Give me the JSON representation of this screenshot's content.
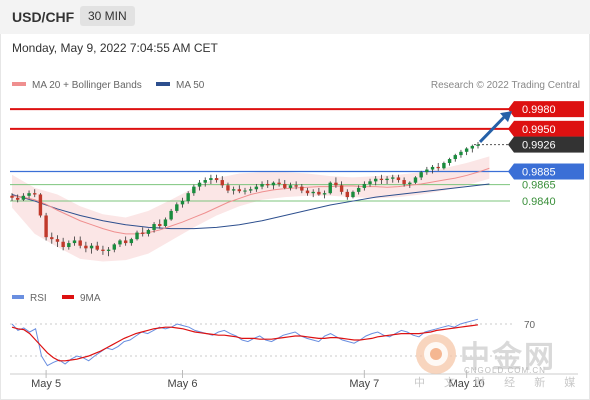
{
  "header": {
    "pair": "USD/CHF",
    "timeframe": "30 MIN"
  },
  "datetime": "Monday, May 9, 2022 7:04:55 AM CET",
  "legend": [
    {
      "label": "MA 20 + Bollinger Bands",
      "color": "#ef8f8f"
    },
    {
      "label": "MA 50",
      "color": "#2d4f8e"
    }
  ],
  "credit": "Research © 2022 Trading Central",
  "rsi_legend": [
    {
      "label": "RSI",
      "color": "#6a8fe0"
    },
    {
      "label": "9MA",
      "color": "#dd1111"
    }
  ],
  "watermark": {
    "cn": "中金网",
    "en": "CNGOLD.COM.CN",
    "sub": "中 文 财 经 新 媒 体"
  },
  "colors": {
    "resistance": "#dd1111",
    "pivot": "#3b6fd6",
    "support": "#7dc47d",
    "current": "#333333",
    "bb_fill": "#fbe3e3"
  },
  "chart_data": [
    {
      "type": "candlestick",
      "title": "USD/CHF",
      "x_ticks": [
        "May 5",
        "May 6",
        "May 7",
        "May 10"
      ],
      "ylim": [
        0.9735,
        1.0
      ],
      "candles": [
        [
          0.9848,
          0.9852,
          0.984,
          0.9845
        ],
        [
          0.9845,
          0.985,
          0.9838,
          0.9842
        ],
        [
          0.9842,
          0.9852,
          0.984,
          0.9848
        ],
        [
          0.9848,
          0.9856,
          0.9844,
          0.9852
        ],
        [
          0.9852,
          0.9858,
          0.9846,
          0.985
        ],
        [
          0.985,
          0.9852,
          0.9815,
          0.9818
        ],
        [
          0.9818,
          0.9822,
          0.978,
          0.9785
        ],
        [
          0.9785,
          0.9792,
          0.9775,
          0.9782
        ],
        [
          0.9782,
          0.9788,
          0.977,
          0.9778
        ],
        [
          0.9778,
          0.9784,
          0.9765,
          0.977
        ],
        [
          0.977,
          0.978,
          0.9766,
          0.9776
        ],
        [
          0.9776,
          0.9786,
          0.9772,
          0.978
        ],
        [
          0.978,
          0.9786,
          0.9768,
          0.9772
        ],
        [
          0.9772,
          0.9778,
          0.9762,
          0.9768
        ],
        [
          0.9768,
          0.9776,
          0.976,
          0.9772
        ],
        [
          0.9772,
          0.9778,
          0.9764,
          0.9766
        ],
        [
          0.9766,
          0.9772,
          0.9758,
          0.9764
        ],
        [
          0.9764,
          0.977,
          0.9756,
          0.9766
        ],
        [
          0.9766,
          0.9776,
          0.9762,
          0.9774
        ],
        [
          0.9774,
          0.9782,
          0.977,
          0.978
        ],
        [
          0.978,
          0.9786,
          0.9772,
          0.9776
        ],
        [
          0.9776,
          0.9784,
          0.9772,
          0.9782
        ],
        [
          0.9782,
          0.9795,
          0.978,
          0.9792
        ],
        [
          0.9792,
          0.98,
          0.9786,
          0.979
        ],
        [
          0.979,
          0.9798,
          0.9786,
          0.9796
        ],
        [
          0.9796,
          0.9808,
          0.9792,
          0.9805
        ],
        [
          0.9805,
          0.9812,
          0.9798,
          0.9802
        ],
        [
          0.9802,
          0.9815,
          0.98,
          0.9812
        ],
        [
          0.9812,
          0.9828,
          0.981,
          0.9825
        ],
        [
          0.9825,
          0.9838,
          0.9822,
          0.9835
        ],
        [
          0.9835,
          0.9845,
          0.983,
          0.984
        ],
        [
          0.984,
          0.9855,
          0.9836,
          0.9852
        ],
        [
          0.9852,
          0.9865,
          0.9848,
          0.9862
        ],
        [
          0.9862,
          0.9872,
          0.9856,
          0.9868
        ],
        [
          0.9868,
          0.9876,
          0.9862,
          0.9872
        ],
        [
          0.9872,
          0.988,
          0.9866,
          0.9875
        ],
        [
          0.9875,
          0.988,
          0.9868,
          0.9872
        ],
        [
          0.9872,
          0.9878,
          0.986,
          0.9864
        ],
        [
          0.9864,
          0.9868,
          0.9852,
          0.9856
        ],
        [
          0.9856,
          0.9862,
          0.985,
          0.9858
        ],
        [
          0.9858,
          0.9864,
          0.9852,
          0.9855
        ],
        [
          0.9855,
          0.986,
          0.985,
          0.9856
        ],
        [
          0.9856,
          0.9862,
          0.9852,
          0.9858
        ],
        [
          0.9858,
          0.9866,
          0.9854,
          0.9862
        ],
        [
          0.9862,
          0.987,
          0.9858,
          0.9866
        ],
        [
          0.9866,
          0.9872,
          0.986,
          0.9864
        ],
        [
          0.9864,
          0.987,
          0.9858,
          0.9868
        ],
        [
          0.9868,
          0.9874,
          0.9862,
          0.9866
        ],
        [
          0.9866,
          0.9872,
          0.9858,
          0.986
        ],
        [
          0.986,
          0.9868,
          0.9856,
          0.9864
        ],
        [
          0.9864,
          0.987,
          0.9858,
          0.9862
        ],
        [
          0.9862,
          0.9866,
          0.9852,
          0.9856
        ],
        [
          0.9856,
          0.986,
          0.9848,
          0.9852
        ],
        [
          0.9852,
          0.9858,
          0.9846,
          0.9854
        ],
        [
          0.9854,
          0.986,
          0.9848,
          0.985
        ],
        [
          0.985,
          0.9856,
          0.9844,
          0.9852
        ],
        [
          0.9852,
          0.987,
          0.985,
          0.9868
        ],
        [
          0.9868,
          0.9876,
          0.986,
          0.9864
        ],
        [
          0.9864,
          0.987,
          0.985,
          0.9854
        ],
        [
          0.9854,
          0.9858,
          0.9842,
          0.9846
        ],
        [
          0.9846,
          0.9856,
          0.9844,
          0.9854
        ],
        [
          0.9854,
          0.9864,
          0.985,
          0.986
        ],
        [
          0.986,
          0.987,
          0.9856,
          0.9866
        ],
        [
          0.9866,
          0.9874,
          0.9862,
          0.987
        ],
        [
          0.987,
          0.9878,
          0.9864,
          0.9874
        ],
        [
          0.9874,
          0.988,
          0.9866,
          0.9872
        ],
        [
          0.9872,
          0.9878,
          0.9866,
          0.9874
        ],
        [
          0.9874,
          0.988,
          0.9868,
          0.9876
        ],
        [
          0.9876,
          0.988,
          0.9868,
          0.9872
        ],
        [
          0.9872,
          0.9876,
          0.9862,
          0.9866
        ],
        [
          0.9866,
          0.987,
          0.986,
          0.9868
        ],
        [
          0.9868,
          0.9878,
          0.9866,
          0.9876
        ],
        [
          0.9876,
          0.9886,
          0.9872,
          0.9884
        ],
        [
          0.9884,
          0.9892,
          0.988,
          0.9888
        ],
        [
          0.9888,
          0.9895,
          0.9882,
          0.9892
        ],
        [
          0.9892,
          0.9898,
          0.9886,
          0.989
        ],
        [
          0.989,
          0.99,
          0.9888,
          0.9898
        ],
        [
          0.9898,
          0.9906,
          0.9894,
          0.9904
        ],
        [
          0.9904,
          0.9912,
          0.99,
          0.991
        ],
        [
          0.991,
          0.9918,
          0.9906,
          0.9915
        ],
        [
          0.9915,
          0.9922,
          0.991,
          0.992
        ],
        [
          0.992,
          0.9926,
          0.9914,
          0.9924
        ],
        [
          0.9924,
          0.993,
          0.992,
          0.9926
        ]
      ],
      "ma20": [
        0.9848,
        0.9846,
        0.9842,
        0.9835,
        0.9826,
        0.9818,
        0.981,
        0.9804,
        0.9798,
        0.9793,
        0.979,
        0.979,
        0.9792,
        0.9796,
        0.9802,
        0.9808,
        0.9815,
        0.9822,
        0.983,
        0.9838,
        0.9844,
        0.985,
        0.9854,
        0.9857,
        0.9859,
        0.986,
        0.9861,
        0.9862,
        0.9862,
        0.9863,
        0.9863,
        0.9862,
        0.9862,
        0.9861,
        0.9862,
        0.9864,
        0.9866,
        0.9869,
        0.9872,
        0.9875,
        0.9879,
        0.9884,
        0.989
      ],
      "ma20_x": [
        0,
        2,
        4,
        6,
        8,
        10,
        12,
        14,
        16,
        18,
        20,
        22,
        24,
        26,
        28,
        30,
        32,
        34,
        36,
        38,
        40,
        42,
        44,
        46,
        48,
        50,
        52,
        54,
        56,
        58,
        60,
        62,
        64,
        66,
        68,
        70,
        72,
        74,
        76,
        78,
        80,
        82,
        84
      ],
      "bb_upper": [
        0.988,
        0.986,
        0.985,
        0.9832,
        0.982,
        0.9815,
        0.9825,
        0.9842,
        0.986,
        0.9875,
        0.9882,
        0.9884,
        0.9884,
        0.9882,
        0.9878,
        0.9876,
        0.9878,
        0.988,
        0.9884,
        0.989,
        0.9898,
        0.9908
      ],
      "bb_lower": [
        0.983,
        0.979,
        0.977,
        0.9752,
        0.9748,
        0.975,
        0.976,
        0.978,
        0.98,
        0.9818,
        0.9832,
        0.9842,
        0.9846,
        0.9848,
        0.9848,
        0.9846,
        0.9844,
        0.9846,
        0.985,
        0.9856,
        0.9864,
        0.9874
      ],
      "bb_x": [
        0,
        4,
        8,
        12,
        16,
        20,
        24,
        28,
        32,
        36,
        40,
        44,
        48,
        52,
        56,
        60,
        64,
        68,
        72,
        76,
        80,
        84
      ],
      "ma50": [
        0.985,
        0.984,
        0.9828,
        0.9818,
        0.981,
        0.9804,
        0.98,
        0.9798,
        0.9798,
        0.98,
        0.9804,
        0.981,
        0.9818,
        0.9826,
        0.9834,
        0.984,
        0.9846,
        0.985,
        0.9854,
        0.9858,
        0.9862,
        0.9866
      ],
      "ma50_x": [
        0,
        4,
        8,
        12,
        16,
        20,
        24,
        28,
        32,
        36,
        40,
        44,
        48,
        52,
        56,
        60,
        64,
        68,
        72,
        76,
        80,
        84
      ],
      "levels": [
        {
          "value": 0.998,
          "label": "0.9980",
          "kind": "resistance"
        },
        {
          "value": 0.995,
          "label": "0.9950",
          "kind": "resistance"
        },
        {
          "value": 0.9926,
          "label": "0.9926",
          "kind": "current"
        },
        {
          "value": 0.9885,
          "label": "0.9885",
          "kind": "pivot"
        },
        {
          "value": 0.9865,
          "label": "0.9865",
          "kind": "support"
        },
        {
          "value": 0.984,
          "label": "0.9840",
          "kind": "support"
        }
      ],
      "forecast": {
        "from": 0.993,
        "to": 0.998
      }
    },
    {
      "type": "line",
      "title": "RSI",
      "ylim": [
        15,
        85
      ],
      "level_labels": [
        "70"
      ],
      "series": [
        {
          "name": "RSI",
          "values": [
            70,
            62,
            65,
            60,
            64,
            30,
            18,
            22,
            25,
            20,
            26,
            30,
            28,
            24,
            30,
            35,
            40,
            38,
            42,
            48,
            50,
            55,
            60,
            58,
            62,
            66,
            64,
            66,
            70,
            68,
            66,
            62,
            60,
            58,
            56,
            60,
            62,
            58,
            55,
            50,
            48,
            52,
            55,
            50,
            48,
            52,
            56,
            58,
            60,
            55,
            52,
            50,
            48,
            55,
            58,
            54,
            50,
            48,
            46,
            50,
            55,
            58,
            60,
            56,
            54,
            58,
            62,
            60,
            56,
            54,
            60,
            62,
            64,
            66,
            68,
            66,
            70,
            72,
            74,
            76
          ]
        },
        {
          "name": "9MA",
          "values": [
            66,
            64,
            63,
            58,
            50,
            42,
            34,
            28,
            24,
            24,
            25,
            26,
            28,
            30,
            33,
            36,
            40,
            44,
            48,
            52,
            55,
            58,
            60,
            62,
            64,
            65,
            66,
            66,
            65,
            64,
            62,
            60,
            59,
            58,
            57,
            56,
            56,
            55,
            54,
            52,
            52,
            52,
            51,
            51,
            51,
            52,
            53,
            54,
            55,
            55,
            54,
            53,
            52,
            52,
            53,
            53,
            52,
            51,
            50,
            50,
            51,
            52,
            54,
            55,
            56,
            57,
            58,
            58,
            58,
            58,
            59,
            60,
            62,
            63,
            64,
            65,
            66,
            67,
            68,
            69
          ]
        }
      ]
    }
  ]
}
